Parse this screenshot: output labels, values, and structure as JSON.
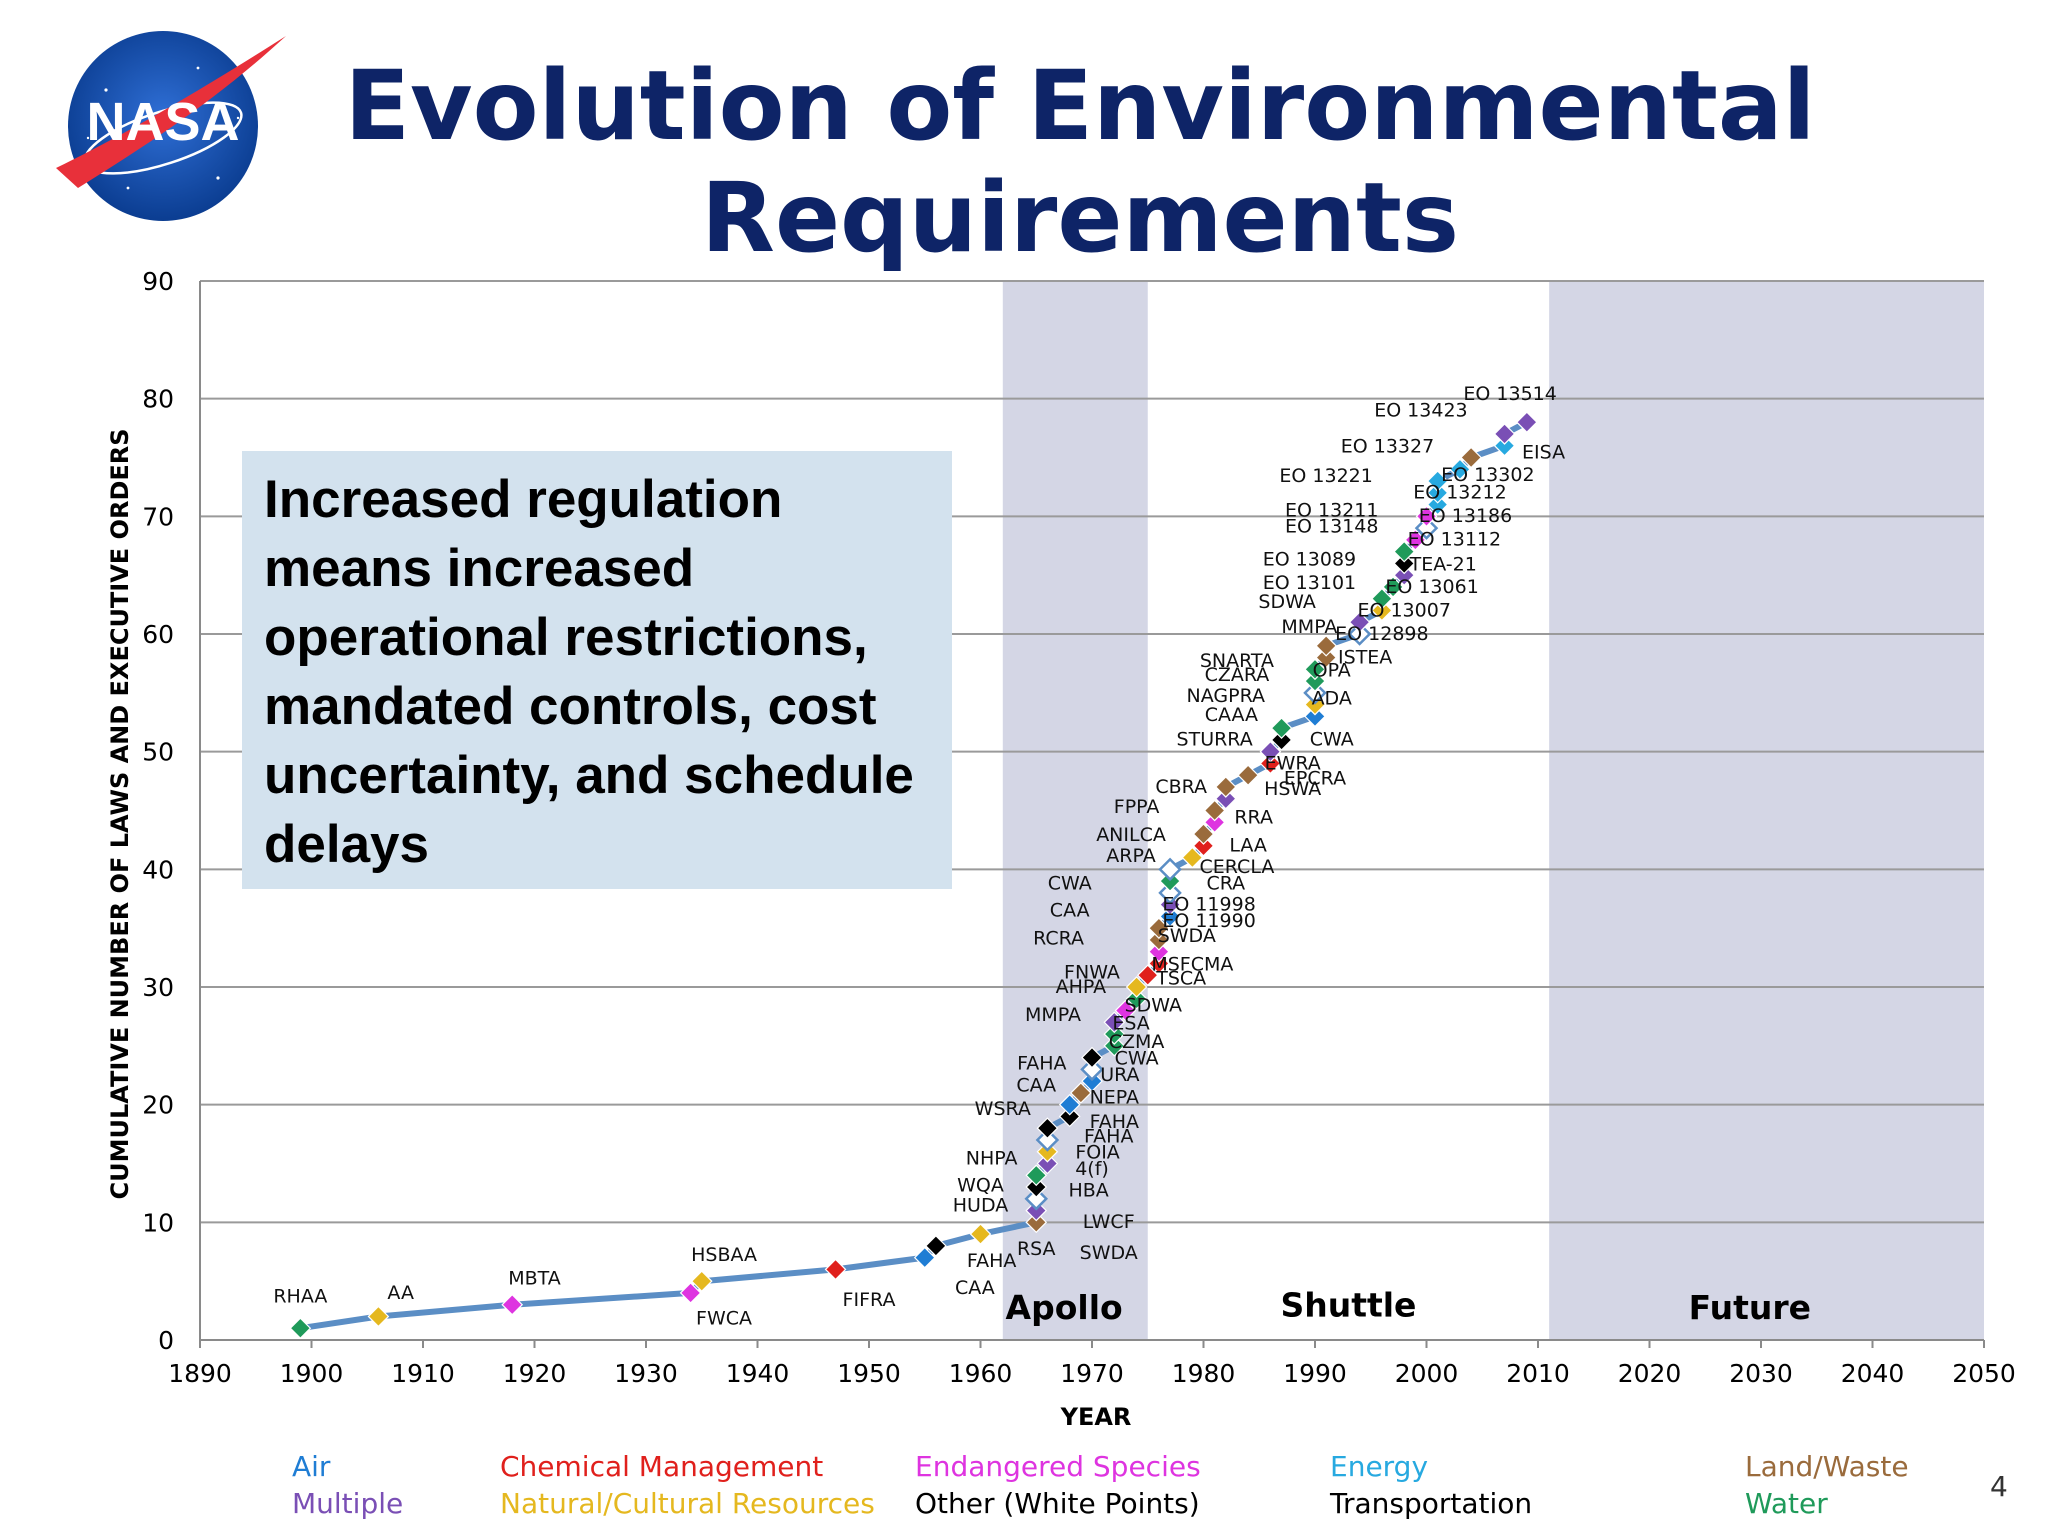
{
  "slide": {
    "title_line1": "Evolution of Environmental",
    "title_line2": "Requirements",
    "logo_text": "NASA",
    "callout_text": "Increased regulation means increased operational restrictions, mandated controls, cost uncertainty, and schedule delays",
    "page_number": "4"
  },
  "colors": {
    "title": "#0e2467",
    "line": "#5b8ec5",
    "era_band": "#d4d6e5",
    "callout_bg": "#d3e2ee"
  },
  "chart_data": {
    "type": "line",
    "xlabel": "YEAR",
    "ylabel": "CUMULATIVE NUMBER OF LAWS AND EXECUTIVE ORDERS",
    "xlim": [
      1890,
      2050
    ],
    "ylim": [
      0,
      90
    ],
    "x_ticks": [
      "1890",
      "1900",
      "1910",
      "1920",
      "1930",
      "1940",
      "1950",
      "1960",
      "1970",
      "1980",
      "1990",
      "2000",
      "2010",
      "2020",
      "2030",
      "2040",
      "2050"
    ],
    "y_ticks": [
      "0",
      "10",
      "20",
      "30",
      "40",
      "50",
      "60",
      "70",
      "80",
      "90"
    ],
    "grid": "horizontal",
    "eras": [
      {
        "name": "Apollo",
        "start": 1962,
        "end": 1975,
        "shaded": true
      },
      {
        "name": "Shuttle",
        "start": 1975,
        "end": 2011,
        "shaded": false
      },
      {
        "name": "Future",
        "start": 2011,
        "end": 2050,
        "shaded": true
      }
    ],
    "legend": [
      {
        "name": "Air",
        "color": "#1f7dd4"
      },
      {
        "name": "Multiple",
        "color": "#7a4fb5"
      },
      {
        "name": "Chemical Management",
        "color": "#e0201c"
      },
      {
        "name": "Natural/Cultural Resources",
        "color": "#e5b81f"
      },
      {
        "name": "Endangered Species",
        "color": "#de34e0"
      },
      {
        "name": "Other (White Points)",
        "color": "#000000"
      },
      {
        "name": "Energy",
        "color": "#27a9e0"
      },
      {
        "name": "Transportation",
        "color": "#000000"
      },
      {
        "name": "Land/Waste",
        "color": "#9a6b3c"
      },
      {
        "name": "Water",
        "color": "#1f9a5a"
      }
    ],
    "series": [
      {
        "name": "Cumulative",
        "points": [
          {
            "x": 1899,
            "y": 1,
            "cat": "water"
          },
          {
            "x": 1906,
            "y": 2,
            "cat": "natural"
          },
          {
            "x": 1918,
            "y": 3,
            "cat": "endangered"
          },
          {
            "x": 1934,
            "y": 4,
            "cat": "endangered"
          },
          {
            "x": 1935,
            "y": 5,
            "cat": "natural"
          },
          {
            "x": 1947,
            "y": 6,
            "cat": "chemical"
          },
          {
            "x": 1955,
            "y": 7,
            "cat": "air"
          },
          {
            "x": 1956,
            "y": 8,
            "cat": "transport"
          },
          {
            "x": 1960,
            "y": 9,
            "cat": "natural"
          },
          {
            "x": 1965,
            "y": 10,
            "cat": "land"
          },
          {
            "x": 1965,
            "y": 11,
            "cat": "multiple"
          },
          {
            "x": 1965,
            "y": 12,
            "cat": "other"
          },
          {
            "x": 1965,
            "y": 13,
            "cat": "transport"
          },
          {
            "x": 1965,
            "y": 14,
            "cat": "water"
          },
          {
            "x": 1966,
            "y": 15,
            "cat": "multiple"
          },
          {
            "x": 1966,
            "y": 16,
            "cat": "natural"
          },
          {
            "x": 1966,
            "y": 17,
            "cat": "other"
          },
          {
            "x": 1966,
            "y": 18,
            "cat": "transport"
          },
          {
            "x": 1968,
            "y": 19,
            "cat": "transport"
          },
          {
            "x": 1968,
            "y": 20,
            "cat": "air"
          },
          {
            "x": 1969,
            "y": 21,
            "cat": "land"
          },
          {
            "x": 1970,
            "y": 22,
            "cat": "air"
          },
          {
            "x": 1970,
            "y": 23,
            "cat": "other"
          },
          {
            "x": 1970,
            "y": 24,
            "cat": "transport"
          },
          {
            "x": 1972,
            "y": 25,
            "cat": "water"
          },
          {
            "x": 1972,
            "y": 26,
            "cat": "water"
          },
          {
            "x": 1972,
            "y": 27,
            "cat": "multiple"
          },
          {
            "x": 1973,
            "y": 28,
            "cat": "endangered"
          },
          {
            "x": 1974,
            "y": 29,
            "cat": "water"
          },
          {
            "x": 1974,
            "y": 30,
            "cat": "natural"
          },
          {
            "x": 1975,
            "y": 31,
            "cat": "chemical"
          },
          {
            "x": 1976,
            "y": 32,
            "cat": "chemical"
          },
          {
            "x": 1976,
            "y": 33,
            "cat": "endangered"
          },
          {
            "x": 1976,
            "y": 34,
            "cat": "land"
          },
          {
            "x": 1976,
            "y": 35,
            "cat": "land"
          },
          {
            "x": 1977,
            "y": 36,
            "cat": "air"
          },
          {
            "x": 1977,
            "y": 37,
            "cat": "multiple"
          },
          {
            "x": 1977,
            "y": 38,
            "cat": "other"
          },
          {
            "x": 1977,
            "y": 39,
            "cat": "water"
          },
          {
            "x": 1977,
            "y": 40,
            "cat": "other"
          },
          {
            "x": 1979,
            "y": 41,
            "cat": "natural"
          },
          {
            "x": 1980,
            "y": 42,
            "cat": "chemical"
          },
          {
            "x": 1980,
            "y": 43,
            "cat": "land"
          },
          {
            "x": 1981,
            "y": 44,
            "cat": "endangered"
          },
          {
            "x": 1981,
            "y": 45,
            "cat": "land"
          },
          {
            "x": 1982,
            "y": 46,
            "cat": "multiple"
          },
          {
            "x": 1982,
            "y": 47,
            "cat": "land"
          },
          {
            "x": 1984,
            "y": 48,
            "cat": "land"
          },
          {
            "x": 1986,
            "y": 49,
            "cat": "chemical"
          },
          {
            "x": 1986,
            "y": 50,
            "cat": "multiple"
          },
          {
            "x": 1987,
            "y": 51,
            "cat": "transport"
          },
          {
            "x": 1987,
            "y": 52,
            "cat": "water"
          },
          {
            "x": 1990,
            "y": 53,
            "cat": "air"
          },
          {
            "x": 1990,
            "y": 54,
            "cat": "natural"
          },
          {
            "x": 1990,
            "y": 55,
            "cat": "other"
          },
          {
            "x": 1990,
            "y": 56,
            "cat": "water"
          },
          {
            "x": 1990,
            "y": 57,
            "cat": "water"
          },
          {
            "x": 1991,
            "y": 58,
            "cat": "land"
          },
          {
            "x": 1991,
            "y": 59,
            "cat": "land"
          },
          {
            "x": 1994,
            "y": 60,
            "cat": "other"
          },
          {
            "x": 1994,
            "y": 61,
            "cat": "multiple"
          },
          {
            "x": 1996,
            "y": 62,
            "cat": "natural"
          },
          {
            "x": 1996,
            "y": 63,
            "cat": "water"
          },
          {
            "x": 1997,
            "y": 64,
            "cat": "water"
          },
          {
            "x": 1998,
            "y": 65,
            "cat": "multiple"
          },
          {
            "x": 1998,
            "y": 66,
            "cat": "transport"
          },
          {
            "x": 1998,
            "y": 67,
            "cat": "water"
          },
          {
            "x": 1999,
            "y": 68,
            "cat": "endangered"
          },
          {
            "x": 2000,
            "y": 69,
            "cat": "other"
          },
          {
            "x": 2000,
            "y": 70,
            "cat": "endangered"
          },
          {
            "x": 2001,
            "y": 71,
            "cat": "energy"
          },
          {
            "x": 2001,
            "y": 72,
            "cat": "energy"
          },
          {
            "x": 2001,
            "y": 73,
            "cat": "energy"
          },
          {
            "x": 2003,
            "y": 74,
            "cat": "energy"
          },
          {
            "x": 2004,
            "y": 75,
            "cat": "land"
          },
          {
            "x": 2007,
            "y": 76,
            "cat": "energy"
          },
          {
            "x": 2007,
            "y": 77,
            "cat": "multiple"
          },
          {
            "x": 2009,
            "y": 78,
            "cat": "multiple"
          }
        ]
      }
    ],
    "annotations": [
      {
        "text": "RHAA",
        "x": 1899,
        "y": 3.8
      },
      {
        "text": "AA",
        "x": 1908,
        "y": 4.1
      },
      {
        "text": "MBTA",
        "x": 1920,
        "y": 5.3
      },
      {
        "text": "HSBAA",
        "x": 1937,
        "y": 7.3
      },
      {
        "text": "FWCA",
        "x": 1937,
        "y": 1.9
      },
      {
        "text": "FIFRA",
        "x": 1950,
        "y": 3.5
      },
      {
        "text": "FAHA",
        "x": 1961,
        "y": 6.8
      },
      {
        "text": "CAA",
        "x": 1959.5,
        "y": 4.5
      },
      {
        "text": "RSA",
        "x": 1965,
        "y": 7.8
      },
      {
        "text": "SWDA",
        "x": 1971.5,
        "y": 7.5
      },
      {
        "text": "LWCF",
        "x": 1971.5,
        "y": 10.1
      },
      {
        "text": "HBA",
        "x": 1969.7,
        "y": 12.8
      },
      {
        "text": "4(f)",
        "x": 1970,
        "y": 14.6
      },
      {
        "text": "FOIA",
        "x": 1970.5,
        "y": 16.0
      },
      {
        "text": "FAHA",
        "x": 1971.5,
        "y": 17.4
      },
      {
        "text": "FAHA",
        "x": 1972,
        "y": 18.6
      },
      {
        "text": "NEPA",
        "x": 1972,
        "y": 20.7
      },
      {
        "text": "URA",
        "x": 1972.5,
        "y": 22.6
      },
      {
        "text": "CWA",
        "x": 1974,
        "y": 24.0
      },
      {
        "text": "CZMA",
        "x": 1974,
        "y": 25.4
      },
      {
        "text": "ESA",
        "x": 1973.5,
        "y": 27.0
      },
      {
        "text": "SDWA",
        "x": 1975.5,
        "y": 28.5
      },
      {
        "text": "TSCA",
        "x": 1978,
        "y": 30.8
      },
      {
        "text": "MSFCMA",
        "x": 1979,
        "y": 32.0
      },
      {
        "text": "SWDA",
        "x": 1978.5,
        "y": 34.4
      },
      {
        "text": "EO 11990",
        "x": 1980.5,
        "y": 35.7
      },
      {
        "text": "EO 11998",
        "x": 1980.5,
        "y": 37.1
      },
      {
        "text": "CRA",
        "x": 1982,
        "y": 38.9
      },
      {
        "text": "CERCLA",
        "x": 1983,
        "y": 40.3
      },
      {
        "text": "LAA",
        "x": 1984,
        "y": 42.1
      },
      {
        "text": "RRA",
        "x": 1984.5,
        "y": 44.5
      },
      {
        "text": "HSWA",
        "x": 1988,
        "y": 46.9
      },
      {
        "text": "EPCRA",
        "x": 1990,
        "y": 47.8
      },
      {
        "text": "EWRA",
        "x": 1988,
        "y": 49.1
      },
      {
        "text": "CWA",
        "x": 1991.5,
        "y": 51.1
      },
      {
        "text": "ADA",
        "x": 1991.5,
        "y": 54.6
      },
      {
        "text": "OPA",
        "x": 1991.5,
        "y": 57.0
      },
      {
        "text": "ISTEA",
        "x": 1994.5,
        "y": 58.1
      },
      {
        "text": "EO 12898",
        "x": 1996,
        "y": 60.1
      },
      {
        "text": "EO 13007",
        "x": 1998,
        "y": 62.1
      },
      {
        "text": "EO 13061",
        "x": 2000.5,
        "y": 64.1
      },
      {
        "text": "TEA-21",
        "x": 2001.5,
        "y": 66.0
      },
      {
        "text": "EO 13112",
        "x": 2002.5,
        "y": 68.1
      },
      {
        "text": "EO 13186",
        "x": 2003.5,
        "y": 70.1
      },
      {
        "text": "EO 13212",
        "x": 2003,
        "y": 72.1
      },
      {
        "text": "EO 13302",
        "x": 2005.5,
        "y": 73.6
      },
      {
        "text": "EISA",
        "x": 2010.5,
        "y": 75.5
      },
      {
        "text": "EO 13514",
        "x": 2007.5,
        "y": 80.5
      },
      {
        "text": "EO 13423",
        "x": 1999.5,
        "y": 79.1
      },
      {
        "text": "EO 13327",
        "x": 1996.5,
        "y": 76.0
      },
      {
        "text": "EO 13221",
        "x": 1991,
        "y": 73.5
      },
      {
        "text": "EO 13211",
        "x": 1991.5,
        "y": 70.6
      },
      {
        "text": "EO 13148",
        "x": 1991.5,
        "y": 69.2
      },
      {
        "text": "EO 13089",
        "x": 1989.5,
        "y": 66.4
      },
      {
        "text": "EO 13101",
        "x": 1989.5,
        "y": 64.4
      },
      {
        "text": "SDWA",
        "x": 1987.5,
        "y": 62.8
      },
      {
        "text": "MMPA",
        "x": 1989.5,
        "y": 60.7
      },
      {
        "text": "SNARTA",
        "x": 1983,
        "y": 57.8
      },
      {
        "text": "CZARA",
        "x": 1983,
        "y": 56.6
      },
      {
        "text": "NAGPRA",
        "x": 1982,
        "y": 54.8
      },
      {
        "text": "CAAA",
        "x": 1982.5,
        "y": 53.2
      },
      {
        "text": "STURRA",
        "x": 1981,
        "y": 51.1
      },
      {
        "text": "CBRA",
        "x": 1978,
        "y": 47.1
      },
      {
        "text": "FPPA",
        "x": 1974,
        "y": 45.4
      },
      {
        "text": "ANILCA",
        "x": 1973.5,
        "y": 43.0
      },
      {
        "text": "ARPA",
        "x": 1973.5,
        "y": 41.2
      },
      {
        "text": "CWA",
        "x": 1968,
        "y": 38.9
      },
      {
        "text": "CAA",
        "x": 1968,
        "y": 36.6
      },
      {
        "text": "RCRA",
        "x": 1967,
        "y": 34.2
      },
      {
        "text": "FNWA",
        "x": 1970,
        "y": 31.3
      },
      {
        "text": "AHPA",
        "x": 1969,
        "y": 30.1
      },
      {
        "text": "MMPA",
        "x": 1966.5,
        "y": 27.7
      },
      {
        "text": "FAHA",
        "x": 1965.5,
        "y": 23.6
      },
      {
        "text": "CAA",
        "x": 1965,
        "y": 21.7
      },
      {
        "text": "WSRA",
        "x": 1962,
        "y": 19.7
      },
      {
        "text": "NHPA",
        "x": 1961,
        "y": 15.5
      },
      {
        "text": "WQA",
        "x": 1960,
        "y": 13.2
      },
      {
        "text": "HUDA",
        "x": 1960,
        "y": 11.5
      }
    ]
  }
}
